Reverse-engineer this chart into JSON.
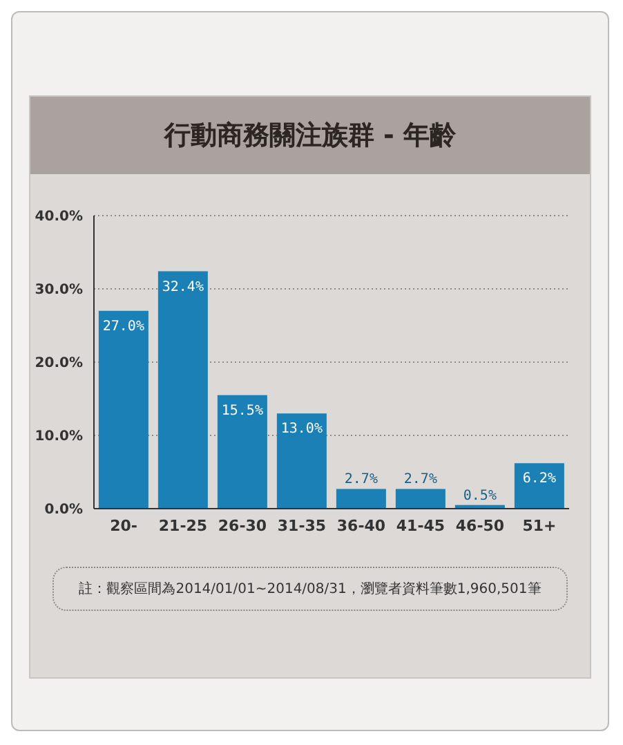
{
  "chart_data": {
    "type": "bar",
    "title": "行動商務關注族群 - 年齡",
    "categories": [
      "20-",
      "21-25",
      "26-30",
      "31-35",
      "36-40",
      "41-45",
      "46-50",
      "51+"
    ],
    "values": [
      27.0,
      32.4,
      15.5,
      13.0,
      2.7,
      2.7,
      0.5,
      6.2
    ],
    "value_labels": [
      "27.0%",
      "32.4%",
      "15.5%",
      "13.0%",
      "2.7%",
      "2.7%",
      "0.5%",
      "6.2%"
    ],
    "color": "#1a80b6",
    "ylim": [
      0,
      40
    ],
    "yticks": [
      {
        "value": 0,
        "label": "0.0%"
      },
      {
        "value": 10,
        "label": "10.0%"
      },
      {
        "value": 20,
        "label": "20.0%"
      },
      {
        "value": 30,
        "label": "30.0%"
      },
      {
        "value": 40,
        "label": "40.0%"
      }
    ],
    "grid": "y",
    "annotations": [
      "註：觀察區間為2014/01/01~2014/08/31，瀏覽者資料筆數1,960,501筆"
    ]
  }
}
